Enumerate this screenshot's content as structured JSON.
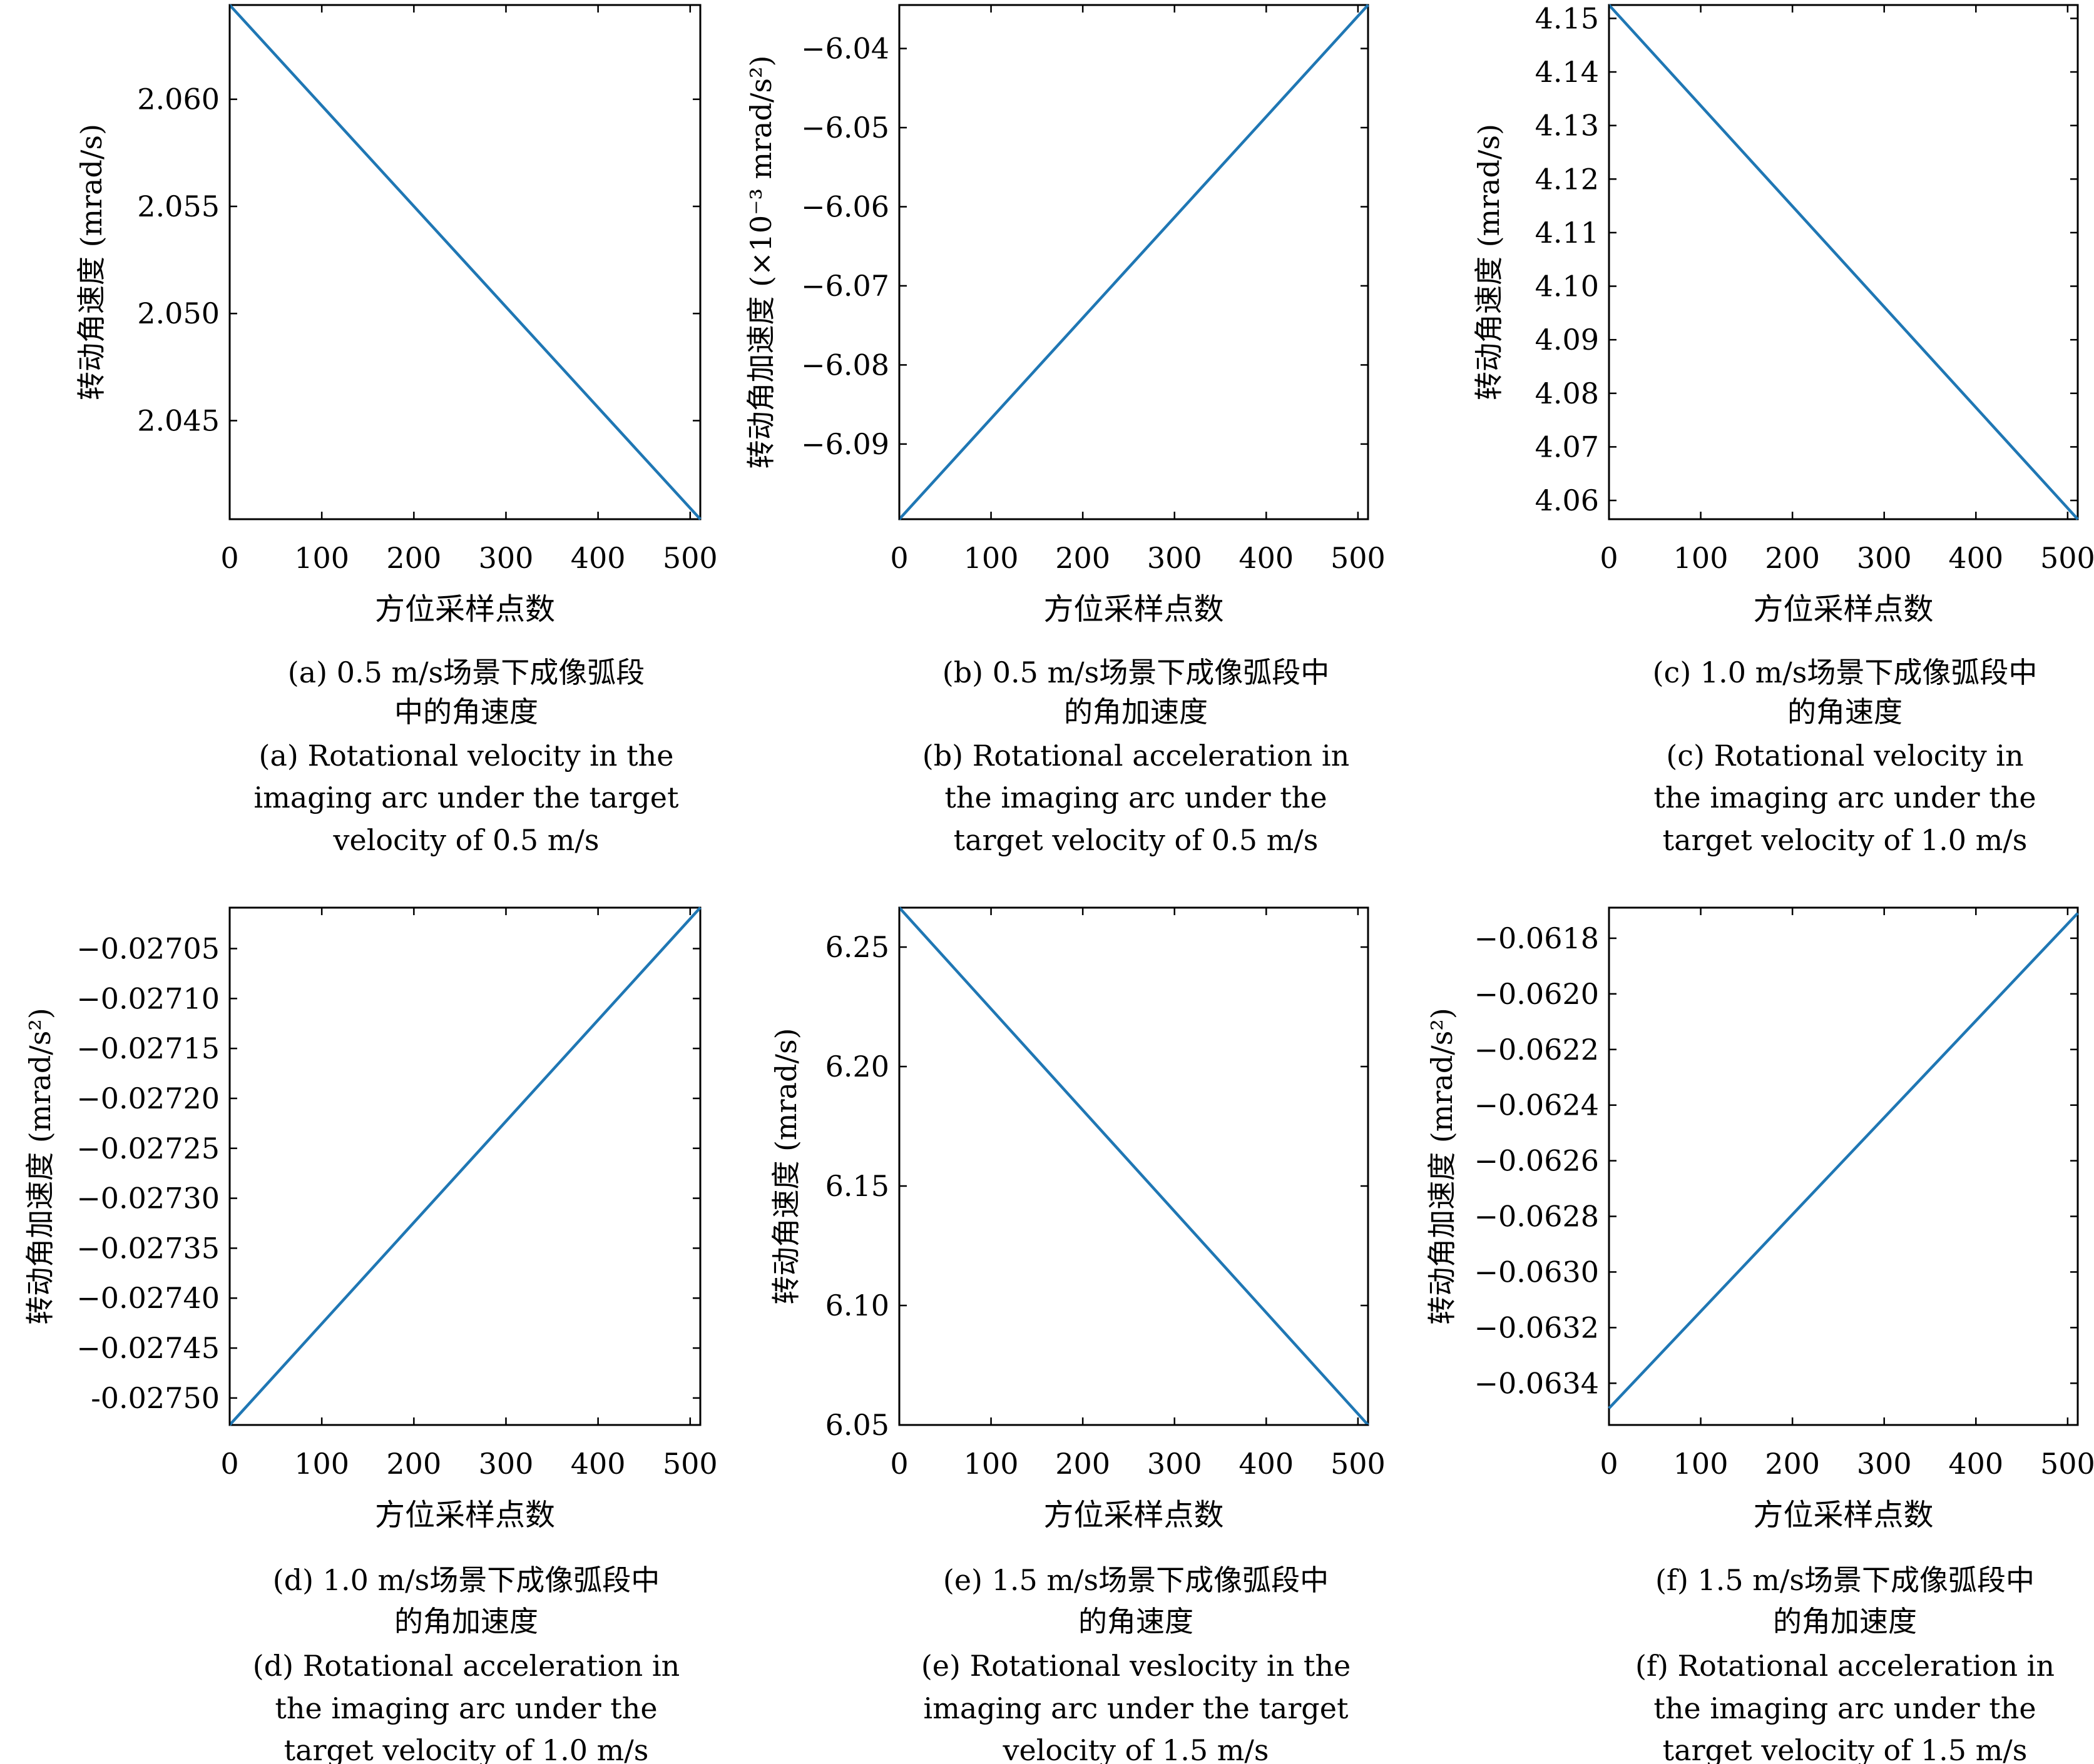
{
  "chart_data": [
    {
      "id": "a",
      "type": "line",
      "xlabel": "方位采样点数",
      "ylabel": "转动角速度 (mrad/s)",
      "xlim": [
        0,
        511
      ],
      "ylim": [
        2.0404,
        2.0644
      ],
      "xticks": [
        0,
        100,
        200,
        300,
        400,
        500
      ],
      "xtick_labels": [
        "0",
        "100",
        "200",
        "300",
        "400",
        "500"
      ],
      "yticks": [
        2.045,
        2.05,
        2.055,
        2.06
      ],
      "ytick_labels": [
        "2.045",
        "2.050",
        "2.055",
        "2.060"
      ],
      "series": [
        {
          "x": [
            0,
            511
          ],
          "y": [
            2.0644,
            2.0404
          ]
        }
      ],
      "caption_cn": [
        "(a) 0.5 m/s场景下成像弧段",
        "中的角速度"
      ],
      "caption_en": [
        "(a) Rotational velocity in the",
        "imaging arc under the target",
        "velocity of 0.5 m/s"
      ]
    },
    {
      "id": "b",
      "type": "line",
      "xlabel": "方位采样点数",
      "ylabel": "转动角加速度 (×10⁻³ mrad/s²)",
      "xlim": [
        0,
        511
      ],
      "ylim": [
        -6.0995,
        -6.0345
      ],
      "xticks": [
        0,
        100,
        200,
        300,
        400,
        500
      ],
      "xtick_labels": [
        "0",
        "100",
        "200",
        "300",
        "400",
        "500"
      ],
      "yticks": [
        -6.09,
        -6.08,
        -6.07,
        -6.06,
        -6.05,
        -6.04
      ],
      "ytick_labels": [
        "−6.09",
        "−6.08",
        "−6.07",
        "−6.06",
        "−6.05",
        "−6.04"
      ],
      "series": [
        {
          "x": [
            0,
            511
          ],
          "y": [
            -6.0995,
            -6.0345
          ]
        }
      ],
      "caption_cn": [
        "(b) 0.5 m/s场景下成像弧段中",
        "的角加速度"
      ],
      "caption_en": [
        "(b) Rotational acceleration in",
        "the imaging arc under the",
        "target velocity of 0.5 m/s"
      ]
    },
    {
      "id": "c",
      "type": "line",
      "xlabel": "方位采样点数",
      "ylabel": "转动角速度 (mrad/s)",
      "xlim": [
        0,
        511
      ],
      "ylim": [
        4.0565,
        4.1525
      ],
      "xticks": [
        0,
        100,
        200,
        300,
        400,
        500
      ],
      "xtick_labels": [
        "0",
        "100",
        "200",
        "300",
        "400",
        "500"
      ],
      "yticks": [
        4.06,
        4.07,
        4.08,
        4.09,
        4.1,
        4.11,
        4.12,
        4.13,
        4.14,
        4.15
      ],
      "ytick_labels": [
        "4.06",
        "4.07",
        "4.08",
        "4.09",
        "4.10",
        "4.11",
        "4.12",
        "4.13",
        "4.14",
        "4.15"
      ],
      "series": [
        {
          "x": [
            0,
            511
          ],
          "y": [
            4.1525,
            4.0565
          ]
        }
      ],
      "caption_cn": [
        "(c) 1.0 m/s场景下成像弧段中",
        "的角速度"
      ],
      "caption_en": [
        "(c) Rotational velocity in",
        "the imaging arc under the",
        "target velocity of 1.0  m/s"
      ]
    },
    {
      "id": "d",
      "type": "line",
      "xlabel": "方位采样点数",
      "ylabel": "转动角加速度 (mrad/s²)",
      "xlim": [
        0,
        511
      ],
      "ylim": [
        -0.027527,
        -0.027009
      ],
      "xticks": [
        0,
        100,
        200,
        300,
        400,
        500
      ],
      "xtick_labels": [
        "0",
        "100",
        "200",
        "300",
        "400",
        "500"
      ],
      "yticks": [
        -0.0275,
        -0.02745,
        -0.0274,
        -0.02735,
        -0.0273,
        -0.02725,
        -0.0272,
        -0.02715,
        -0.0271,
        -0.02705
      ],
      "ytick_labels": [
        "-0.02750",
        "−0.02745",
        "−0.02740",
        "−0.02735",
        "−0.02730",
        "−0.02725",
        "−0.02720",
        "−0.02715",
        "−0.02710",
        "−0.02705"
      ],
      "series": [
        {
          "x": [
            0,
            511
          ],
          "y": [
            -0.027527,
            -0.027009
          ]
        }
      ],
      "caption_cn": [
        "(d) 1.0 m/s场景下成像弧段中",
        "的角加速度"
      ],
      "caption_en": [
        "(d) Rotational acceleration in",
        "the imaging arc under the",
        "target velocity of 1.0 m/s"
      ]
    },
    {
      "id": "e",
      "type": "line",
      "xlabel": "方位采样点数",
      "ylabel": "转动角速度 (mrad/s)",
      "xlim": [
        0,
        511
      ],
      "ylim": [
        6.05,
        6.2665
      ],
      "xticks": [
        0,
        100,
        200,
        300,
        400,
        500
      ],
      "xtick_labels": [
        "0",
        "100",
        "200",
        "300",
        "400",
        "500"
      ],
      "yticks": [
        6.05,
        6.1,
        6.15,
        6.2,
        6.25
      ],
      "ytick_labels": [
        "6.05",
        "6.10",
        "6.15",
        "6.20",
        "6.25"
      ],
      "series": [
        {
          "x": [
            0,
            511
          ],
          "y": [
            6.2665,
            6.05
          ]
        }
      ],
      "caption_cn": [
        "(e) 1.5 m/s场景下成像弧段中",
        "的角速度"
      ],
      "caption_en": [
        "(e) Rotational veslocity in the",
        "imaging arc under the target",
        "velocity of 1.5 m/s"
      ]
    },
    {
      "id": "f",
      "type": "line",
      "xlabel": "方位采样点数",
      "ylabel": "转动角加速度 (mrad/s²)",
      "xlim": [
        0,
        511
      ],
      "ylim": [
        -0.06355,
        -0.06169
      ],
      "xticks": [
        0,
        100,
        200,
        300,
        400,
        500
      ],
      "xtick_labels": [
        "0",
        "100",
        "200",
        "300",
        "400",
        "500"
      ],
      "yticks": [
        -0.0634,
        -0.0632,
        -0.063,
        -0.0628,
        -0.0626,
        -0.0624,
        -0.0622,
        -0.062,
        -0.0618
      ],
      "ytick_labels": [
        "−0.0634",
        "−0.0632",
        "−0.0630",
        "−0.0628",
        "−0.0626",
        "−0.0624",
        "−0.0622",
        "−0.0620",
        "−0.0618"
      ],
      "series": [
        {
          "x": [
            0,
            511
          ],
          "y": [
            -0.06349,
            -0.06171
          ]
        }
      ],
      "caption_cn": [
        "(f) 1.5 m/s场景下成像弧段中",
        "的角加速度"
      ],
      "caption_en": [
        "(f) Rotational acceleration in",
        "the imaging arc under the",
        "target velocity of 1.5 m/s"
      ]
    }
  ]
}
